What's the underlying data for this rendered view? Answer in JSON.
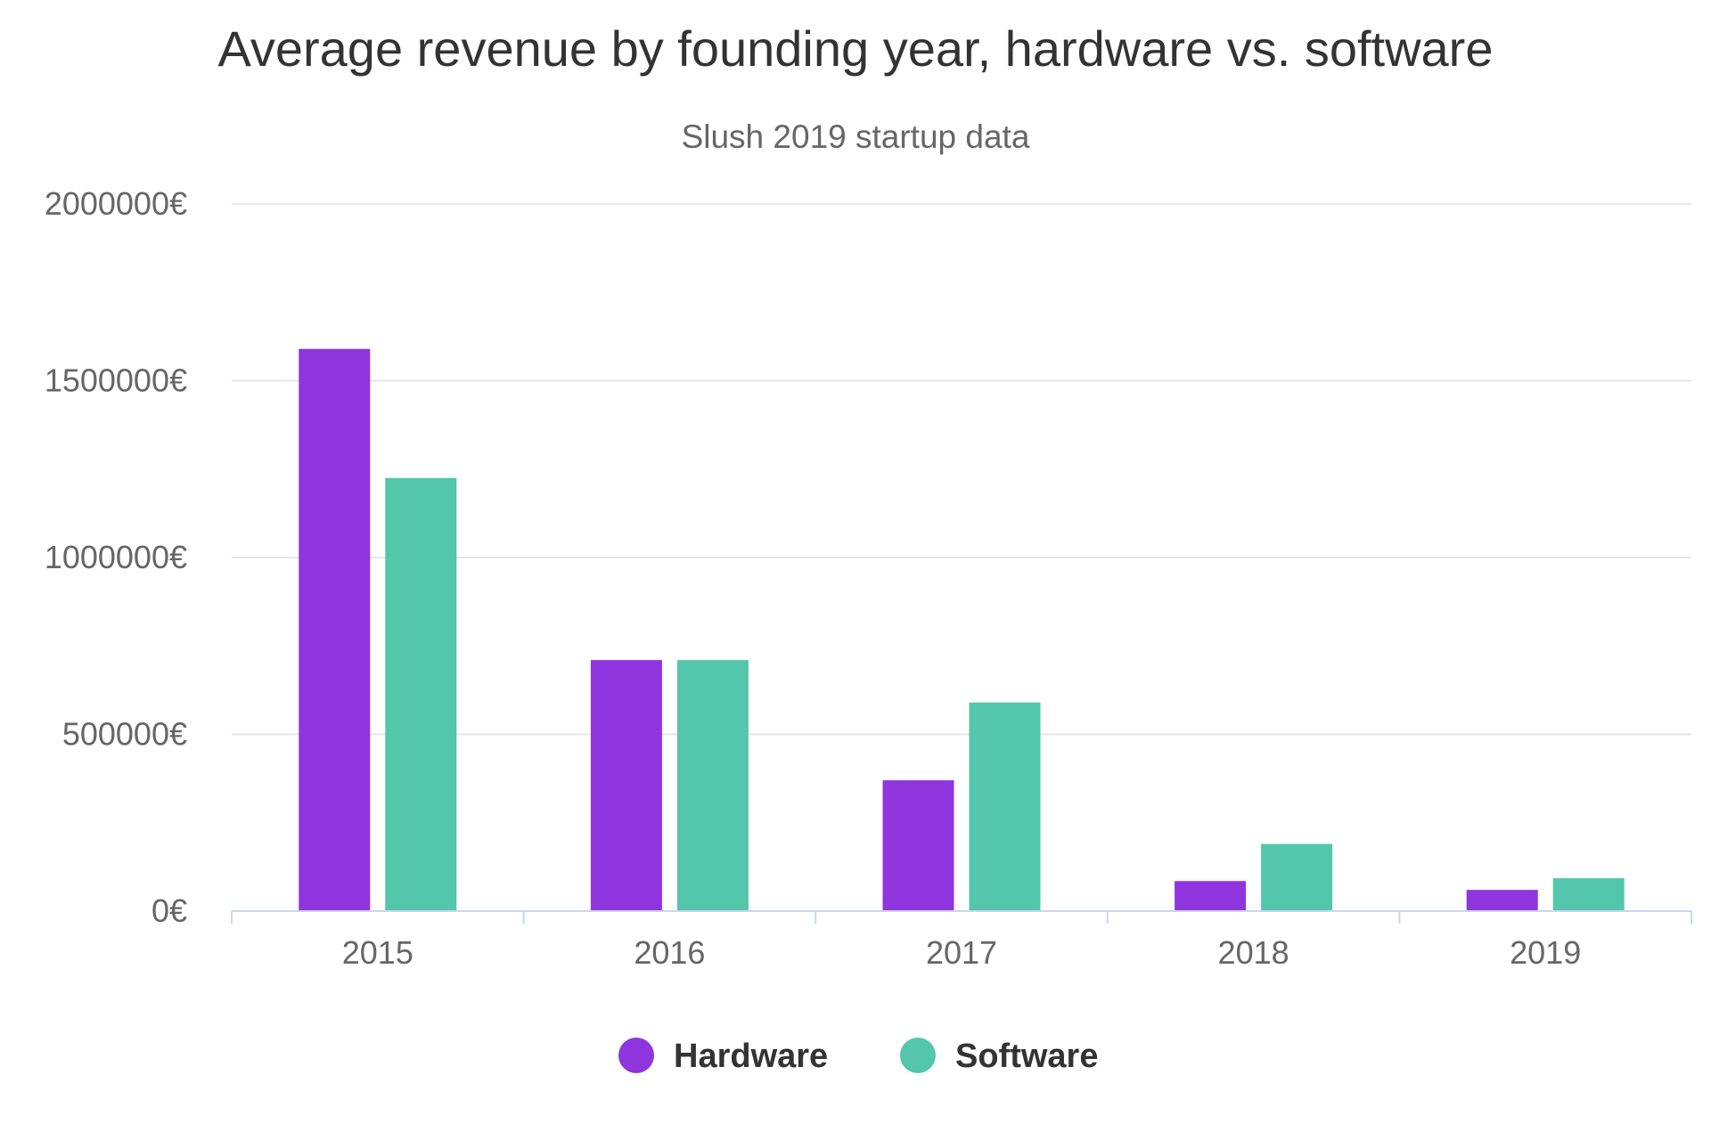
{
  "chart_data": {
    "type": "bar",
    "title": "Average revenue by founding year, hardware vs. software",
    "subtitle": "Slush 2019 startup data",
    "categories": [
      "2015",
      "2016",
      "2017",
      "2018",
      "2019"
    ],
    "series": [
      {
        "name": "Hardware",
        "color": "#8e35de",
        "values": [
          1590000,
          710000,
          370000,
          85000,
          60000
        ]
      },
      {
        "name": "Software",
        "color": "#53c6ab",
        "values": [
          1225000,
          710000,
          590000,
          190000,
          93000
        ]
      }
    ],
    "ylim": [
      0,
      2000000
    ],
    "yticks": [
      0,
      500000,
      1000000,
      1500000,
      2000000
    ],
    "ytick_labels": [
      "0€",
      "500000€",
      "1000000€",
      "1500000€",
      "2000000€"
    ],
    "grid": true,
    "legend": "bottom-center"
  }
}
